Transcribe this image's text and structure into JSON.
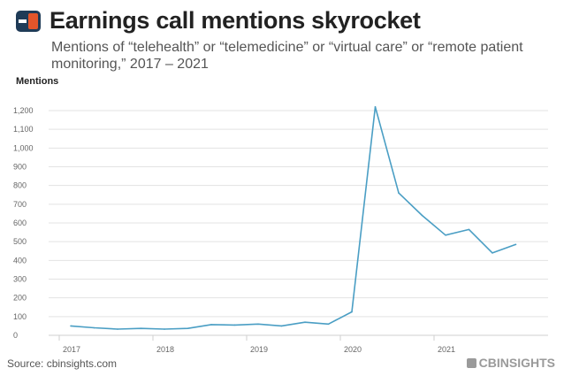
{
  "title": "Earnings call mentions skyrocket",
  "subtitle": "Mentions of “telehealth” or “telemedicine” or “virtual care” or “remote patient monitoring,” 2017 – 2021",
  "source": "Source: cbinsights.com",
  "brand": "CBINSIGHTS",
  "colors": {
    "line": "#4a9ec4",
    "logo_dark": "#1f3b57",
    "logo_accent": "#e2552b"
  },
  "chart_data": {
    "type": "line",
    "title": "Earnings call mentions skyrocket",
    "ylabel": "Mentions",
    "xlabel": "",
    "ylim": [
      0,
      1200
    ],
    "y_ticks": [
      0,
      100,
      200,
      300,
      400,
      500,
      600,
      700,
      800,
      900,
      1000,
      1100,
      1200
    ],
    "y_tick_labels": [
      "0",
      "100",
      "200",
      "300",
      "400",
      "500",
      "600",
      "700",
      "800",
      "900",
      "1,000",
      "1,100",
      "1,200"
    ],
    "x_ticks": [
      "2017",
      "2018",
      "2019",
      "2020",
      "2021"
    ],
    "grid": true,
    "x": [
      "2017 Q1",
      "2017 Q2",
      "2017 Q3",
      "2017 Q4",
      "2018 Q1",
      "2018 Q2",
      "2018 Q3",
      "2018 Q4",
      "2019 Q1",
      "2019 Q2",
      "2019 Q3",
      "2019 Q4",
      "2020 Q1",
      "2020 Q2",
      "2020 Q3",
      "2020 Q4",
      "2021 Q1",
      "2021 Q2",
      "2021 Q3",
      "2021 Q4"
    ],
    "values": [
      50,
      40,
      33,
      37,
      33,
      37,
      57,
      55,
      60,
      50,
      70,
      60,
      125,
      1220,
      760,
      640,
      535,
      565,
      440,
      485
    ]
  }
}
